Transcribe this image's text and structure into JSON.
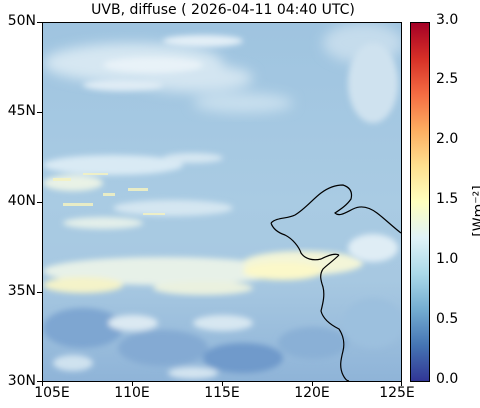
{
  "title": "UVB, diffuse ( 2026-04-11 04:40 UTC)",
  "map": {
    "lon_range": [
      105,
      125
    ],
    "lat_range": [
      30,
      50
    ],
    "x_ticks": [
      "105E",
      "110E",
      "115E",
      "120E",
      "125E"
    ],
    "y_ticks": [
      "50N",
      "45N",
      "40N",
      "35N",
      "30N"
    ],
    "coastline": "Bohai Sea / Yellow Sea coast of China"
  },
  "colorbar": {
    "min": 0.0,
    "max": 3.0,
    "ticks": [
      "3.0",
      "2.5",
      "2.0",
      "1.5",
      "1.0",
      "0.5",
      "0.0"
    ],
    "unit": "[Wm⁻²]",
    "colormap": "RdYlBu_r",
    "colors": [
      "#313695",
      "#4575b4",
      "#74add1",
      "#abd9e9",
      "#e0f3f8",
      "#ffffbf",
      "#fee090",
      "#fdae61",
      "#f46d43",
      "#d73027",
      "#a50026"
    ]
  },
  "colors": {
    "background_field": "#a9cbe3",
    "cloud_light": "#e6f1f7",
    "cloud_yellow": "#fbf8c9",
    "dark_patch": "#5e8ec4"
  }
}
